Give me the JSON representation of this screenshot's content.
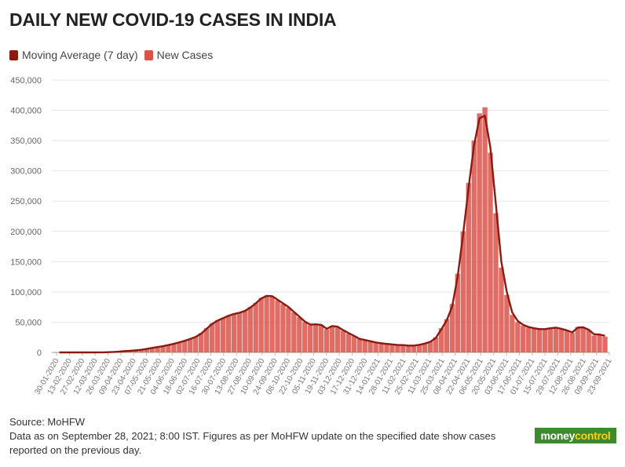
{
  "title": "DAILY NEW COVID-19 CASES IN INDIA",
  "legend": [
    {
      "label": "Moving Average (7 day)",
      "color": "#8b1a10"
    },
    {
      "label": "New Cases",
      "color": "#d9534a"
    }
  ],
  "footer": {
    "source": "Source: MoHFW",
    "note_line1": "Data as on September 28, 2021; 8:00 IST. Figures as per MoHFW update on the specified date show cases",
    "note_line2": "reported on the previous day."
  },
  "logo": {
    "part1": "money",
    "part2": "control"
  },
  "chart_data": {
    "type": "bar",
    "title": "DAILY NEW COVID-19 CASES IN INDIA",
    "xlabel": "",
    "ylabel": "",
    "ylim": [
      0,
      450000
    ],
    "yticks": [
      0,
      50000,
      100000,
      150000,
      200000,
      250000,
      300000,
      350000,
      400000,
      450000
    ],
    "ytick_labels": [
      "0",
      "50,000",
      "100,000",
      "150,000",
      "200,000",
      "250,000",
      "300,000",
      "350,000",
      "400,000",
      "450,000"
    ],
    "xtick_labels": [
      "30-01-2020",
      "13-02-2020",
      "27-02-2020",
      "12-03-2020",
      "26-03-2020",
      "09-04-2020",
      "23-04-2020",
      "07-05-2020",
      "21-05-2020",
      "04-06-2020",
      "18-06-2020",
      "02-07-2020",
      "16-07-2020",
      "30-07-2020",
      "13-08-2020",
      "27-08-2020",
      "10-09-2020",
      "24-09-2020",
      "08-10-2020",
      "22-10-2020",
      "05-11-2020",
      "19-11-2020",
      "03-12-2020",
      "17-12-2020",
      "31-12-2020",
      "14-01-2021",
      "28-01-2021",
      "11-02-2021",
      "25-02-2021",
      "11-03-2021",
      "25-03-2021",
      "08-04-2021",
      "22-04-2021",
      "06-05-2021",
      "20-05-2021",
      "03-06-2021",
      "17-06-2021",
      "01-07-2021",
      "15-07-2021",
      "29-07-2021",
      "12-08-2021",
      "26-08-2021",
      "09-09-2021",
      "23-09-2021"
    ],
    "grid": true,
    "legend_position": "top-left",
    "x_start": "30-01-2020",
    "x_end": "27-09-2021",
    "series": [
      {
        "name": "New Cases",
        "kind": "bar",
        "color": "#d9534a",
        "sample_every_days": 7,
        "values": [
          1,
          0,
          0,
          0,
          0,
          0,
          10,
          60,
          120,
          400,
          800,
          1400,
          2200,
          2800,
          3500,
          4500,
          6000,
          7500,
          9000,
          10500,
          12500,
          14500,
          17000,
          19500,
          22500,
          26000,
          32000,
          40000,
          48000,
          53000,
          57000,
          61000,
          64000,
          66000,
          69000,
          75000,
          82000,
          90000,
          94000,
          92000,
          86000,
          80000,
          74000,
          66000,
          58000,
          50000,
          45000,
          46000,
          45000,
          38000,
          44000,
          42000,
          36000,
          31000,
          27000,
          22000,
          20000,
          18000,
          16000,
          15000,
          14000,
          13000,
          12000,
          12000,
          11000,
          11500,
          13000,
          15000,
          18000,
          25000,
          40000,
          55000,
          80000,
          130000,
          200000,
          280000,
          350000,
          395000,
          405000,
          330000,
          230000,
          140000,
          95000,
          62000,
          50000,
          44000,
          41000,
          39000,
          38000,
          38000,
          40000,
          41000,
          38000,
          36000,
          32000,
          42000,
          40000,
          37000,
          28000,
          30000,
          26000
        ]
      },
      {
        "name": "Moving Average (7 day)",
        "kind": "line",
        "color": "#8b1a10",
        "sample_every_days": 7,
        "values": [
          1,
          0,
          0,
          0,
          0,
          0,
          8,
          50,
          110,
          370,
          760,
          1300,
          2100,
          2700,
          3400,
          4300,
          5800,
          7300,
          8800,
          10300,
          12200,
          14200,
          16700,
          19200,
          22200,
          25600,
          31000,
          39000,
          47000,
          52500,
          56500,
          60500,
          63500,
          65500,
          68500,
          74000,
          81000,
          89000,
          93500,
          93000,
          87000,
          81000,
          75000,
          67000,
          59000,
          51000,
          46000,
          46500,
          45500,
          39000,
          43500,
          42500,
          37000,
          32000,
          27500,
          22500,
          20500,
          18500,
          16500,
          15200,
          14100,
          13200,
          12300,
          12100,
          11200,
          11300,
          12600,
          14700,
          17500,
          24000,
          38000,
          53000,
          76000,
          125000,
          195000,
          272000,
          342000,
          387000,
          391000,
          338000,
          245000,
          150000,
          100000,
          66000,
          52000,
          45500,
          42000,
          40000,
          38500,
          38500,
          40000,
          41000,
          39000,
          36500,
          33000,
          41000,
          41500,
          37500,
          30000,
          29500,
          27500
        ]
      }
    ]
  }
}
